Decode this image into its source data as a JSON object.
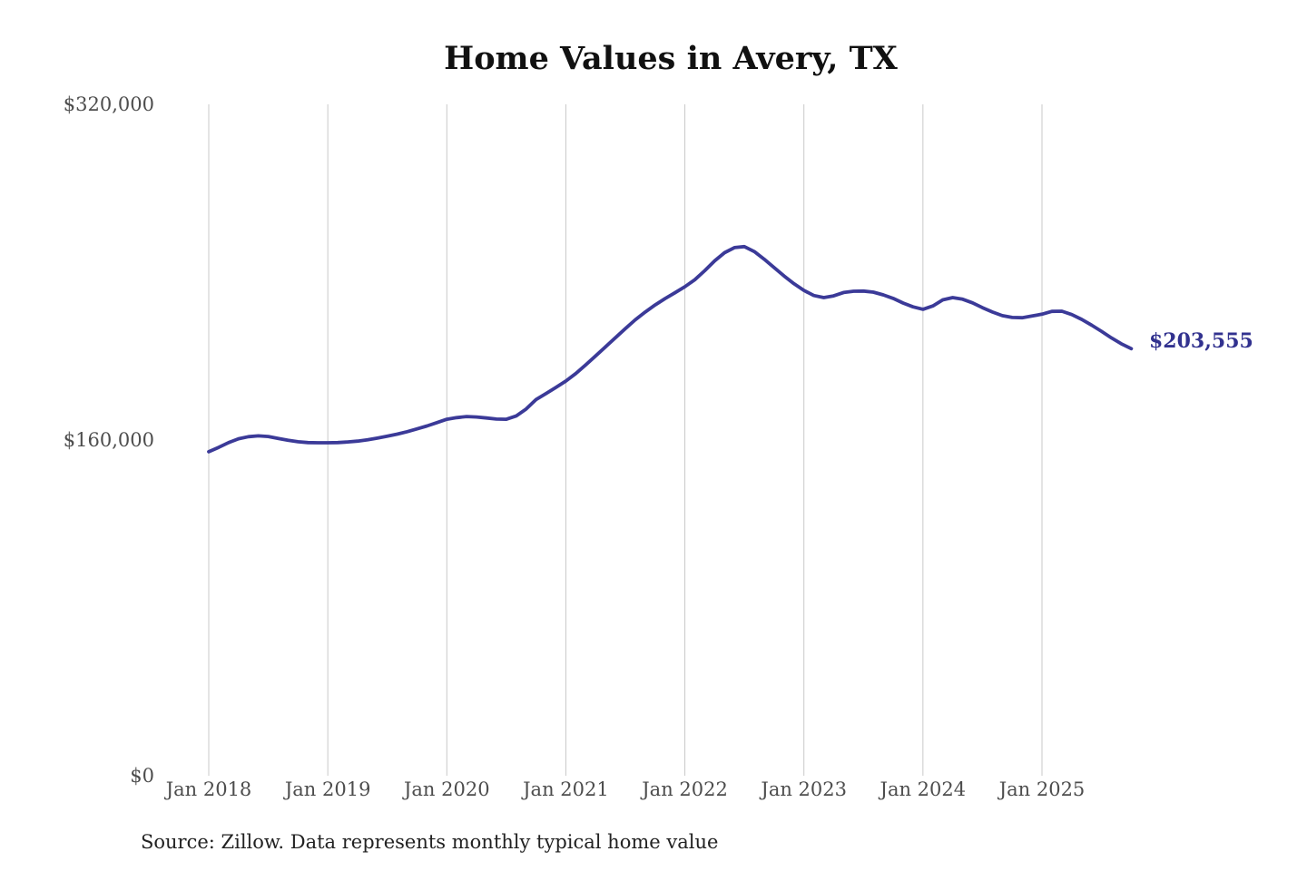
{
  "chart": {
    "title": "Home Values in Avery, TX",
    "latest_value_label": "$203,555",
    "source_note": "Source: Zillow. Data represents monthly typical home value"
  },
  "chart_data": {
    "type": "line",
    "title": "Home Values in Avery, TX",
    "series_name": "Monthly typical home value",
    "x_interval": "monthly",
    "x_start": "Jan 2018",
    "x_end": "Oct 2025",
    "x_tick_labels": [
      "Jan 2018",
      "Jan 2019",
      "Jan 2020",
      "Jan 2021",
      "Jan 2022",
      "Jan 2023",
      "Jan 2024",
      "Jan 2025"
    ],
    "y_tick_labels": [
      "$0",
      "$160,000",
      "$320,000"
    ],
    "y_tick_values": [
      0,
      160000,
      320000
    ],
    "ylim": [
      0,
      320000
    ],
    "grid": "vertical-only",
    "legend": "none",
    "latest_value": 203555,
    "line_color": "#3b3a98",
    "label_color": "#32328f",
    "gridline_color": "#c9c9c9",
    "values": [
      154400,
      156500,
      158800,
      160600,
      161600,
      162000,
      161700,
      160800,
      159900,
      159200,
      158800,
      158700,
      158700,
      158800,
      159100,
      159500,
      160100,
      160900,
      161800,
      162800,
      164000,
      165300,
      166700,
      168300,
      169900,
      170700,
      171200,
      171000,
      170500,
      170000,
      169900,
      171500,
      174800,
      179300,
      182200,
      185100,
      188100,
      191700,
      195800,
      200100,
      204400,
      208800,
      213100,
      217300,
      221000,
      224400,
      227400,
      230200,
      233100,
      236400,
      240700,
      245400,
      249300,
      251700,
      252200,
      249800,
      246200,
      242200,
      238200,
      234500,
      231300,
      228900,
      227900,
      228700,
      230300,
      230900,
      231000,
      230500,
      229200,
      227500,
      225300,
      223500,
      222300,
      223900,
      226800,
      227900,
      227100,
      225400,
      223100,
      221000,
      219300,
      218400,
      218300,
      219100,
      220000,
      221300,
      221400,
      219800,
      217500,
      214800,
      211800,
      208700,
      205900,
      203555
    ]
  }
}
